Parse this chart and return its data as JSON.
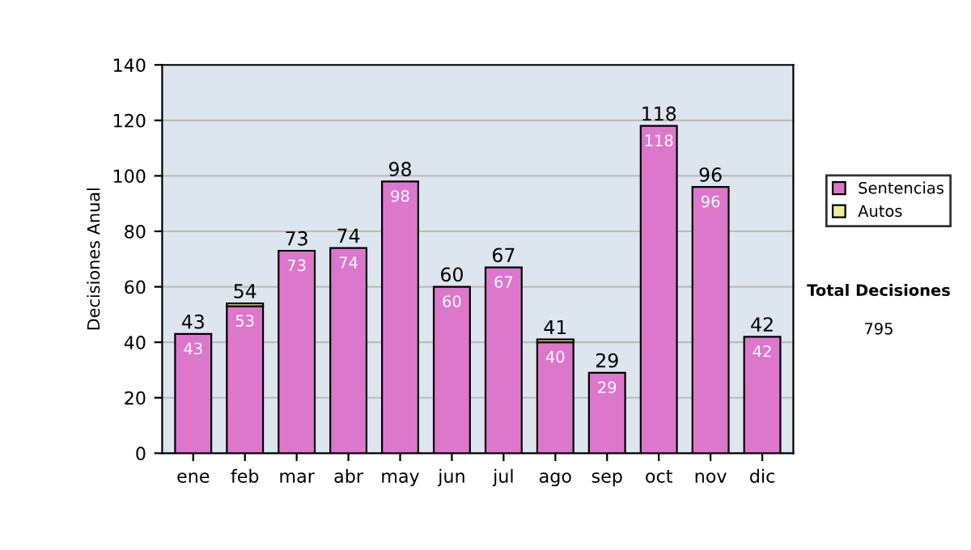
{
  "chart_data": {
    "type": "bar",
    "stacked": true,
    "ylabel": "Decisiones Anual",
    "categories": [
      "ene",
      "feb",
      "mar",
      "abr",
      "may",
      "jun",
      "jul",
      "ago",
      "sep",
      "oct",
      "nov",
      "dic"
    ],
    "series": [
      {
        "name": "Sentencias",
        "color": "#dd77cc",
        "values": [
          43,
          53,
          73,
          74,
          98,
          60,
          67,
          40,
          29,
          118,
          96,
          42
        ],
        "value_labels": [
          "43",
          "53",
          "73",
          "74",
          "98",
          "60",
          "67",
          "40",
          "29",
          "118",
          "96",
          "42"
        ]
      },
      {
        "name": "Autos",
        "color": "#eeee99",
        "values": [
          0,
          1,
          0,
          0,
          0,
          0,
          0,
          1,
          0,
          0,
          0,
          0
        ]
      }
    ],
    "totals": [
      "43",
      "54",
      "73",
      "74",
      "98",
      "60",
      "67",
      "41",
      "29",
      "118",
      "96",
      "42"
    ],
    "ylim": [
      0,
      140
    ],
    "yticks": [
      0,
      20,
      40,
      60,
      80,
      100,
      120,
      140
    ],
    "grid": "y",
    "legend": "right",
    "annotations": [
      "Total Decisiones",
      "795"
    ]
  }
}
